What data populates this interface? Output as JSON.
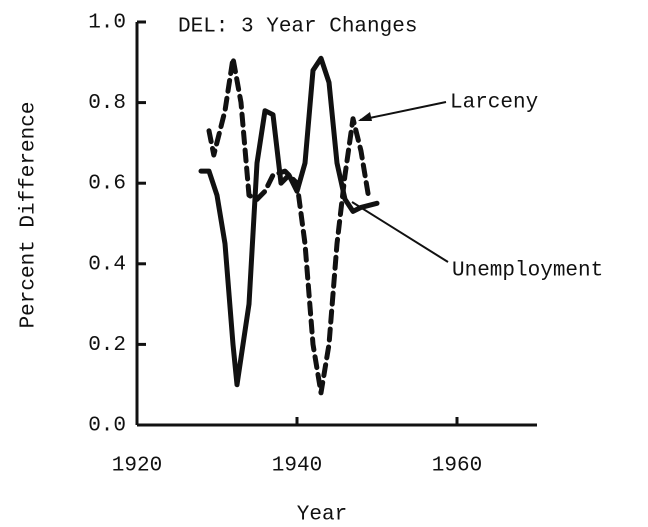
{
  "chart_data": {
    "type": "line",
    "title": "DEL: 3 Year Changes",
    "xlabel": "Year",
    "ylabel": "Percent Difference",
    "xlim": [
      1920,
      1970
    ],
    "ylim": [
      0,
      1
    ],
    "xticks": [
      1920,
      1940,
      1960
    ],
    "yticks": [
      {
        "value": 0,
        "label": "0.0"
      },
      0.2,
      0.4,
      0.6,
      0.8,
      {
        "value": 1,
        "label": "1.0"
      }
    ],
    "grid": false,
    "series": [
      {
        "name": "Larceny",
        "color": "#111111",
        "dashed": true,
        "x": [
          1929,
          1929.6,
          1931,
          1932,
          1933,
          1934,
          1935,
          1936,
          1937,
          1938.5,
          1940,
          1941,
          1942,
          1943,
          1944,
          1945,
          1946,
          1947,
          1948,
          1949
        ],
        "values": [
          0.73,
          0.67,
          0.78,
          0.91,
          0.8,
          0.57,
          0.56,
          0.58,
          0.62,
          0.63,
          0.6,
          0.45,
          0.2,
          0.08,
          0.2,
          0.45,
          0.62,
          0.76,
          0.68,
          0.56
        ]
      },
      {
        "name": "Unemployment",
        "color": "#111111",
        "dashed": false,
        "x": [
          1928,
          1929,
          1930,
          1931,
          1932,
          1932.5,
          1934,
          1935,
          1936,
          1937,
          1938,
          1939,
          1940,
          1941,
          1942,
          1943,
          1944,
          1945,
          1946,
          1947,
          1948,
          1950
        ],
        "values": [
          0.63,
          0.63,
          0.57,
          0.45,
          0.2,
          0.1,
          0.3,
          0.65,
          0.78,
          0.77,
          0.6,
          0.62,
          0.58,
          0.65,
          0.88,
          0.91,
          0.85,
          0.65,
          0.56,
          0.53,
          0.54,
          0.55
        ]
      }
    ]
  }
}
